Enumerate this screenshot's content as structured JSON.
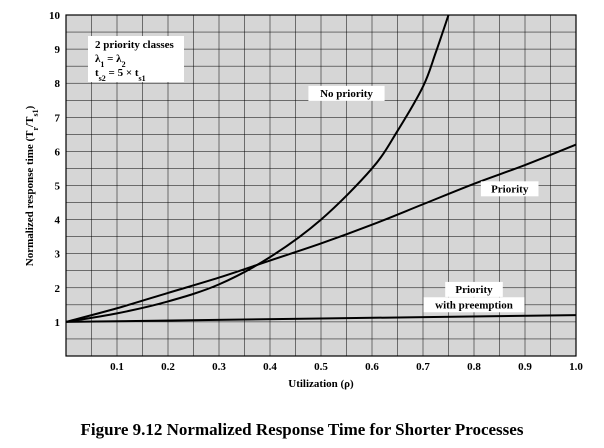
{
  "chart_data": {
    "type": "line",
    "title": "",
    "xlabel": "Utilization (ρ)",
    "ylabel": "Normalized response time (Tr/Ts1)",
    "xlim": [
      0,
      1.0
    ],
    "ylim": [
      0,
      10
    ],
    "x_ticks": [
      0.1,
      0.2,
      0.3,
      0.4,
      0.5,
      0.6,
      0.7,
      0.8,
      0.9,
      1.0
    ],
    "x_tick_labels": [
      "0.1",
      "0.2",
      "0.3",
      "0.4",
      "0.5",
      "0.6",
      "0.7",
      "0.8",
      "0.9",
      "1.0"
    ],
    "y_ticks": [
      1,
      2,
      3,
      4,
      5,
      6,
      7,
      8,
      9,
      10
    ],
    "y_tick_labels": [
      "1",
      "2",
      "3",
      "4",
      "5",
      "6",
      "7",
      "8",
      "9",
      "10"
    ],
    "grid": true,
    "series": [
      {
        "name": "No priority",
        "x": [
          0,
          0.1,
          0.2,
          0.3,
          0.4,
          0.5,
          0.6,
          0.65,
          0.7,
          0.725,
          0.75
        ],
        "y": [
          1,
          1.25,
          1.6,
          2.1,
          2.9,
          4.0,
          5.5,
          6.6,
          7.9,
          8.9,
          10
        ]
      },
      {
        "name": "Priority",
        "x": [
          0,
          0.1,
          0.2,
          0.3,
          0.4,
          0.5,
          0.6,
          0.7,
          0.8,
          0.9,
          1.0
        ],
        "y": [
          1,
          1.4,
          1.85,
          2.3,
          2.8,
          3.3,
          3.85,
          4.45,
          5.05,
          5.6,
          6.2
        ]
      },
      {
        "name": "Priority\nwith preemption",
        "x": [
          0,
          0.5,
          1.0
        ],
        "y": [
          1,
          1.1,
          1.2
        ]
      }
    ],
    "series_labels": [
      {
        "text": "No priority",
        "x": 0.55,
        "y": 7.6
      },
      {
        "text": "Priority",
        "x": 0.87,
        "y": 4.8
      },
      {
        "text": "Priority",
        "x": 0.8,
        "y": 1.85
      },
      {
        "text": "with preemption",
        "x": 0.8,
        "y": 1.4
      }
    ],
    "annotation": {
      "lines": [
        "2 priority classes",
        "λ1 = λ2",
        "ts2 = 5 × ts1"
      ]
    }
  },
  "caption": "Figure 9.12 Normalized Response Time for Shorter Processes"
}
